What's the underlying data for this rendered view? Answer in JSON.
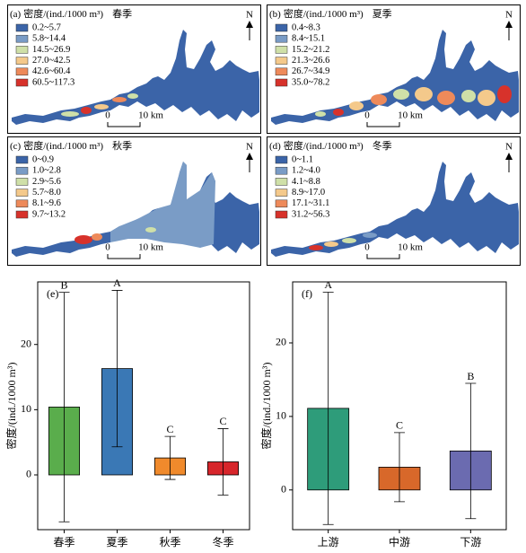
{
  "maps": [
    {
      "label": "(a)",
      "unit": "密度/(ind./1000 m³)",
      "season": "春季",
      "north": "N",
      "scale_labels": [
        "0",
        "10 km"
      ],
      "legend": [
        {
          "label": "0.2~5.7",
          "color": "#3b64a8"
        },
        {
          "label": "5.8~14.4",
          "color": "#7a9cc6"
        },
        {
          "label": "14.5~26.9",
          "color": "#cfe0a8"
        },
        {
          "label": "27.0~42.5",
          "color": "#f4c98b"
        },
        {
          "label": "42.6~60.4",
          "color": "#ee8a5a"
        },
        {
          "label": "60.5~117.3",
          "color": "#d7322b"
        }
      ]
    },
    {
      "label": "(b)",
      "unit": "密度/(ind./1000 m³)",
      "season": "夏季",
      "north": "N",
      "scale_labels": [
        "0",
        "10 km"
      ],
      "legend": [
        {
          "label": "0.4~8.3",
          "color": "#3b64a8"
        },
        {
          "label": "8.4~15.1",
          "color": "#7a9cc6"
        },
        {
          "label": "15.2~21.2",
          "color": "#cfe0a8"
        },
        {
          "label": "21.3~26.6",
          "color": "#f4c98b"
        },
        {
          "label": "26.7~34.9",
          "color": "#ee8a5a"
        },
        {
          "label": "35.0~78.2",
          "color": "#d7322b"
        }
      ]
    },
    {
      "label": "(c)",
      "unit": "密度/(ind./1000 m³)",
      "season": "秋季",
      "north": "N",
      "scale_labels": [
        "0",
        "10 km"
      ],
      "legend": [
        {
          "label": "0~0.9",
          "color": "#3b64a8"
        },
        {
          "label": "1.0~2.8",
          "color": "#7a9cc6"
        },
        {
          "label": "2.9~5.6",
          "color": "#cfe0a8"
        },
        {
          "label": "5.7~8.0",
          "color": "#f4c98b"
        },
        {
          "label": "8.1~9.6",
          "color": "#ee8a5a"
        },
        {
          "label": "9.7~13.2",
          "color": "#d7322b"
        }
      ]
    },
    {
      "label": "(d)",
      "unit": "密度/(ind./1000 m³)",
      "season": "冬季",
      "north": "N",
      "scale_labels": [
        "0",
        "10 km"
      ],
      "legend": [
        {
          "label": "0~1.1",
          "color": "#3b64a8"
        },
        {
          "label": "1.2~4.0",
          "color": "#7a9cc6"
        },
        {
          "label": "4.1~8.8",
          "color": "#cfe0a8"
        },
        {
          "label": "8.9~17.0",
          "color": "#f4c98b"
        },
        {
          "label": "17.1~31.1",
          "color": "#ee8a5a"
        },
        {
          "label": "31.2~56.3",
          "color": "#d7322b"
        }
      ]
    }
  ],
  "chart_data": [
    {
      "type": "bar",
      "panel_label": "(e)",
      "ylabel": "密度/(ind./1000 m³)",
      "categories": [
        "春季",
        "夏季",
        "秋季",
        "冬季"
      ],
      "values": [
        10.4,
        16.3,
        2.6,
        2.0
      ],
      "errors": [
        17.6,
        12.0,
        3.3,
        5.1
      ],
      "annotations": [
        "B",
        "A",
        "C",
        "C"
      ],
      "colors": [
        "#5aad4c",
        "#3a78b5",
        "#f08a2c",
        "#d7262b"
      ],
      "ylim": [
        -8.4,
        29.6
      ],
      "yticks": [
        0,
        10,
        20
      ]
    },
    {
      "type": "bar",
      "panel_label": "(f)",
      "ylabel": "密度/(ind./1000 m³)",
      "categories": [
        "上游",
        "中游",
        "下游"
      ],
      "values": [
        11.1,
        3.1,
        5.3
      ],
      "errors": [
        15.8,
        4.7,
        9.2
      ],
      "annotations": [
        "A",
        "C",
        "B"
      ],
      "colors": [
        "#2e9c7a",
        "#d8682a",
        "#6b6bb0"
      ],
      "ylim": [
        -5.4,
        28.3
      ],
      "yticks": [
        0,
        10,
        20
      ]
    }
  ]
}
